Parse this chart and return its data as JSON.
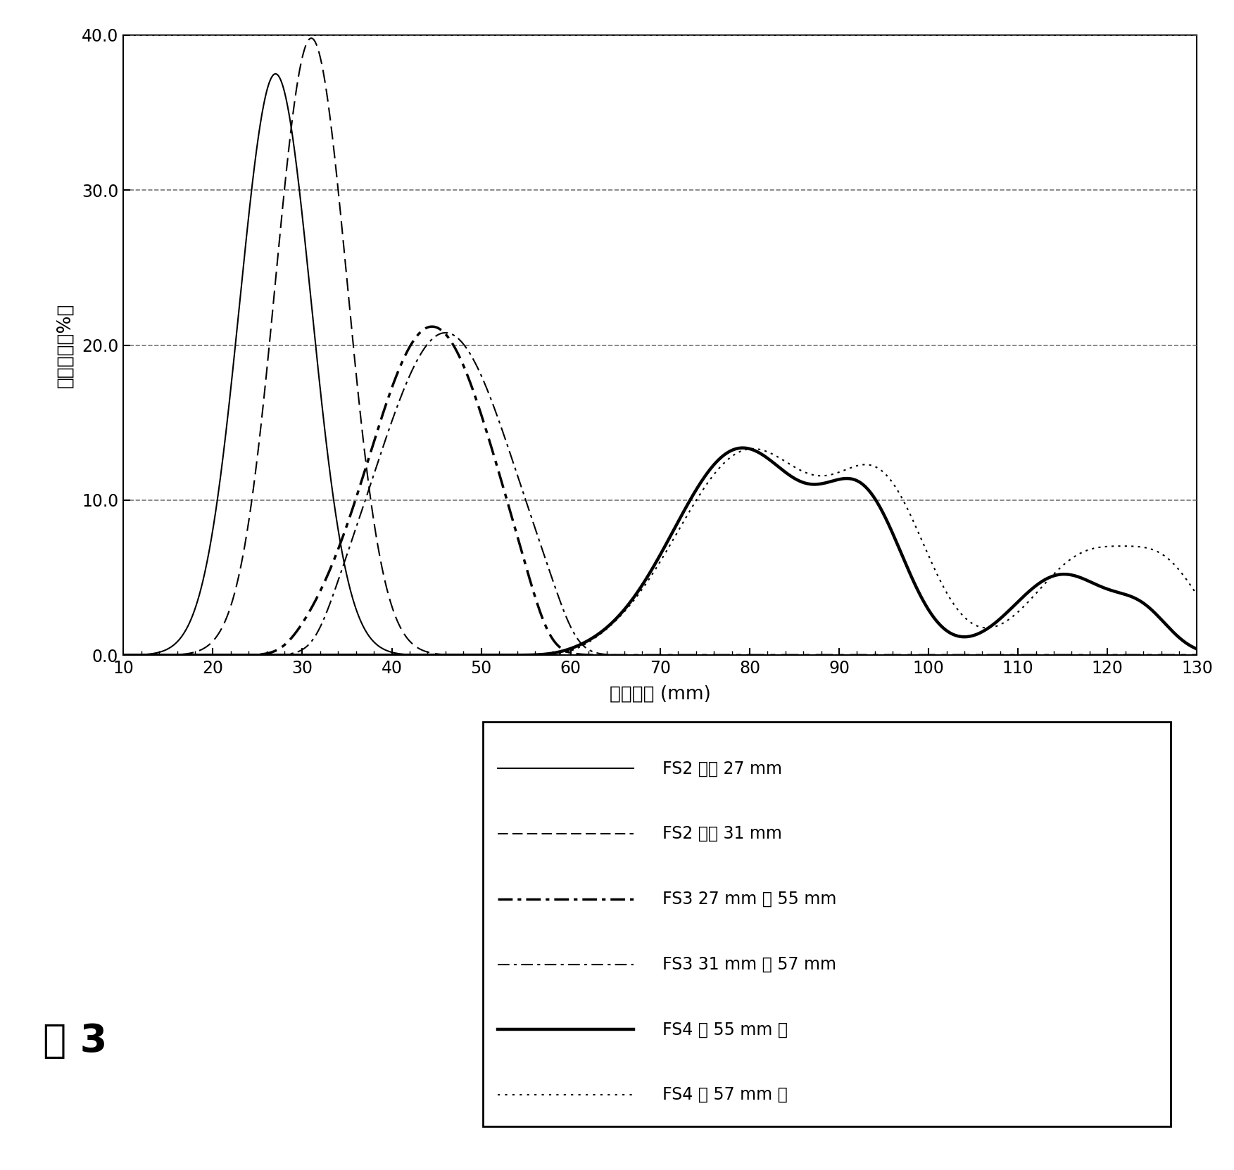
{
  "xlabel": "长度级别 (mm)",
  "ylabel": "重量比例（%）",
  "xlim": [
    10,
    130
  ],
  "ylim": [
    0.0,
    40.0
  ],
  "xticks": [
    10,
    20,
    30,
    40,
    50,
    60,
    70,
    80,
    90,
    100,
    110,
    120,
    130
  ],
  "yticks": [
    0.0,
    10.0,
    20.0,
    30.0,
    40.0
  ],
  "legend_entries": [
    "FS2 最高 27 mm",
    "FS2 最高 31 mm",
    "FS3 27 mm 至 55 mm",
    "FS3 31 mm 至 57 mm",
    "FS4 从 55 mm 起",
    "FS4 从 57 mm 起"
  ],
  "fig3_label": "图 3"
}
